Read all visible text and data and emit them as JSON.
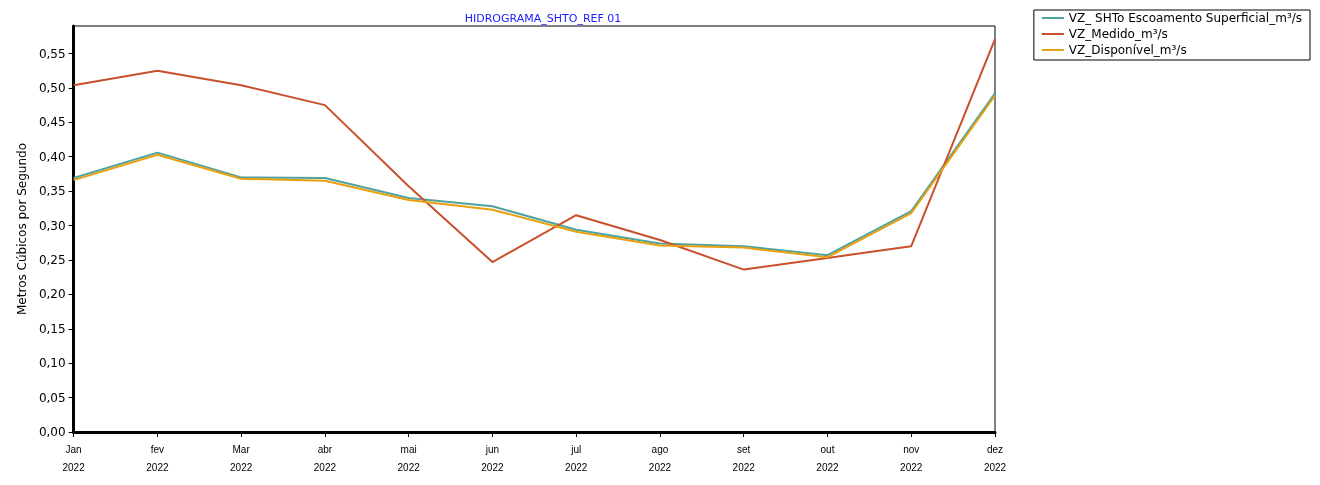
{
  "chart_data": {
    "type": "line",
    "title": "HIDROGRAMA_SHTO_REF 01",
    "ylabel": "Metros Cúbicos por Segundo",
    "categories": [
      "Jan\n2022",
      "fev\n2022",
      "Mar\n2022",
      "abr\n2022",
      "mai\n2022",
      "jun\n2022",
      "jul\n2022",
      "ago\n2022",
      "set\n2022",
      "out\n2022",
      "nov\n2022",
      "dez\n2022"
    ],
    "series": [
      {
        "name": "VZ_ SHTo Escoamento Superficial_m³/s",
        "color": "#4ea3a0",
        "values": [
          0.369,
          0.406,
          0.37,
          0.369,
          0.34,
          0.328,
          0.294,
          0.274,
          0.27,
          0.257,
          0.321,
          0.492
        ]
      },
      {
        "name": "VZ_Medido_m³/s",
        "color": "#c8502c",
        "values": [
          0.504,
          0.525,
          0.504,
          0.475,
          0.357,
          0.247,
          0.315,
          0.279,
          0.236,
          0.253,
          0.27,
          0.571
        ]
      },
      {
        "name": "VZ_Disponível_m³/s",
        "color": "#e8a010",
        "values": [
          0.366,
          0.403,
          0.368,
          0.365,
          0.337,
          0.323,
          0.291,
          0.271,
          0.268,
          0.254,
          0.318,
          0.489
        ]
      }
    ],
    "ylim": [
      0,
      0.59
    ],
    "yticks": [
      {
        "value": 0,
        "label": "0,00"
      },
      {
        "value": 0.05,
        "label": "0,05"
      },
      {
        "value": 0.1,
        "label": "0,10"
      },
      {
        "value": 0.15,
        "label": "0,15"
      },
      {
        "value": 0.2,
        "label": "0,20"
      },
      {
        "value": 0.25,
        "label": "0,25"
      },
      {
        "value": 0.3,
        "label": "0,30"
      },
      {
        "value": 0.35,
        "label": "0,35"
      },
      {
        "value": 0.4,
        "label": "0,40"
      },
      {
        "value": 0.45,
        "label": "0,45"
      },
      {
        "value": 0.5,
        "label": "0,50"
      },
      {
        "value": 0.55,
        "label": "0,55"
      }
    ],
    "grid": false,
    "legend": "top right",
    "marker": "none",
    "line_style": "solid"
  }
}
